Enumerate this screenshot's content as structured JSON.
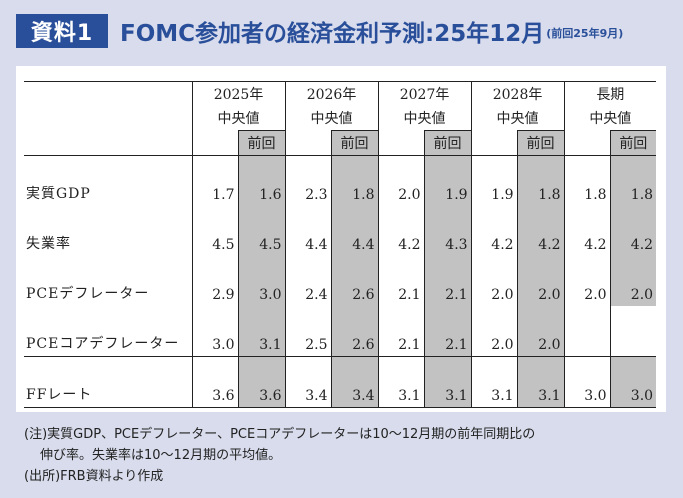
{
  "header": {
    "badge": "資料1",
    "title": "FOMC参加者の経済金利予測:25年12月",
    "subtitle": "(前回25年9月)"
  },
  "table": {
    "years": [
      "2025年",
      "2026年",
      "2027年",
      "2028年",
      "長期"
    ],
    "median_label": "中央値",
    "prev_label": "前回",
    "rows": [
      {
        "label": "実質GDP",
        "values": [
          "1.7",
          "1.6",
          "2.3",
          "1.8",
          "2.0",
          "1.9",
          "1.9",
          "1.8",
          "1.8",
          "1.8"
        ]
      },
      {
        "label": "失業率",
        "values": [
          "4.5",
          "4.5",
          "4.4",
          "4.4",
          "4.2",
          "4.3",
          "4.2",
          "4.2",
          "4.2",
          "4.2"
        ]
      },
      {
        "label": "PCEデフレーター",
        "values": [
          "2.9",
          "3.0",
          "2.4",
          "2.6",
          "2.1",
          "2.1",
          "2.0",
          "2.0",
          "2.0",
          "2.0"
        ]
      },
      {
        "label": "PCEコアデフレーター",
        "values": [
          "3.0",
          "3.1",
          "2.5",
          "2.6",
          "2.1",
          "2.1",
          "2.0",
          "2.0",
          "",
          ""
        ]
      },
      {
        "label": "FFレート",
        "values": [
          "3.6",
          "3.6",
          "3.4",
          "3.4",
          "3.1",
          "3.1",
          "3.1",
          "3.1",
          "3.0",
          "3.0"
        ]
      }
    ]
  },
  "notes": {
    "line1": "(注)実質GDP、PCEデフレーター、PCEコアデフレーターは10〜12月期の前年同期比の",
    "line2": "伸び率。失業率は10〜12月期の平均値。",
    "line3": "(出所)FRB資料より作成"
  }
}
